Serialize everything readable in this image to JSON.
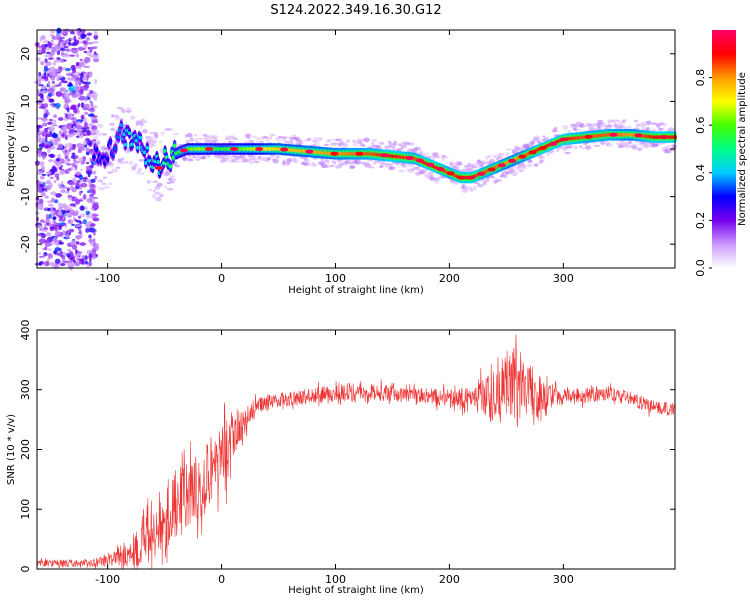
{
  "title": "S124.2022.349.16.30.G12",
  "chart_data": [
    {
      "type": "heatmap",
      "xlabel": "Height of straight line (km)",
      "ylabel": "Frequency (Hz)",
      "xlim": [
        -162,
        398
      ],
      "ylim": [
        -25,
        25
      ],
      "x_ticks": [
        -100,
        0,
        100,
        200,
        300
      ],
      "y_ticks": [
        -20,
        -10,
        0,
        10,
        20
      ],
      "colorbar": {
        "label": "Normalized spectral amplitude",
        "range": [
          0,
          1
        ],
        "ticks": [
          "0.0",
          "0.2",
          "0.4",
          "0.6",
          "0.8"
        ],
        "tick_values": [
          0.0,
          0.2,
          0.4,
          0.6,
          0.8
        ],
        "colors": [
          "#ffffff",
          "#cc99ff",
          "#7700ee",
          "#0000ff",
          "#00ccff",
          "#00ff88",
          "#44ff00",
          "#ffff00",
          "#ff9900",
          "#ff0000",
          "#ff0066"
        ]
      },
      "ridge": {
        "x": [
          -100,
          -90,
          -80,
          -70,
          -60,
          -55,
          -50,
          -40,
          -30,
          -20,
          0,
          50,
          100,
          130,
          150,
          170,
          180,
          190,
          200,
          210,
          220,
          230,
          240,
          250,
          260,
          270,
          280,
          290,
          300,
          320,
          340,
          360,
          380,
          398
        ],
        "freq": [
          -2,
          3,
          2,
          0,
          -3,
          -4,
          -2,
          -1,
          0,
          0,
          0,
          0,
          -1,
          -1,
          -1.5,
          -2,
          -3,
          -4,
          -5,
          -6,
          -6,
          -5,
          -4,
          -3,
          -2,
          -1,
          0,
          1,
          2,
          2.5,
          3,
          3,
          2.5,
          2.5
        ],
        "amplitude": [
          0.3,
          0.35,
          0.45,
          0.4,
          0.45,
          0.45,
          0.5,
          0.55,
          0.6,
          0.65,
          0.55,
          0.75,
          0.8,
          0.85,
          0.9,
          0.85,
          0.9,
          0.9,
          0.85,
          0.9,
          0.9,
          0.85,
          0.85,
          0.8,
          0.8,
          0.85,
          0.9,
          0.9,
          0.9,
          0.85,
          0.85,
          0.8,
          0.9,
          0.9
        ]
      }
    },
    {
      "type": "line",
      "xlabel": "Height of straight line (km)",
      "ylabel": "SNR (10 * v/v)",
      "xlim": [
        -162,
        398
      ],
      "ylim": [
        0,
        400
      ],
      "x_ticks": [
        -100,
        0,
        100,
        200,
        300
      ],
      "y_ticks": [
        0,
        100,
        200,
        300,
        400
      ],
      "series": [
        {
          "color": "#ee3333",
          "x": [
            -162,
            -140,
            -120,
            -100,
            -80,
            -70,
            -60,
            -50,
            -40,
            -30,
            -20,
            -10,
            0,
            10,
            20,
            30,
            40,
            60,
            80,
            100,
            120,
            140,
            160,
            180,
            200,
            220,
            240,
            250,
            260,
            270,
            280,
            300,
            320,
            340,
            360,
            380,
            398
          ],
          "mean": [
            10,
            10,
            9,
            15,
            30,
            45,
            70,
            90,
            110,
            120,
            140,
            170,
            185,
            215,
            245,
            270,
            280,
            285,
            290,
            295,
            300,
            295,
            290,
            290,
            285,
            285,
            290,
            300,
            305,
            300,
            290,
            290,
            290,
            295,
            285,
            270,
            265
          ],
          "spread": [
            6,
            6,
            6,
            10,
            25,
            45,
            60,
            60,
            60,
            60,
            55,
            60,
            60,
            50,
            35,
            15,
            12,
            12,
            14,
            14,
            14,
            14,
            14,
            14,
            16,
            20,
            50,
            60,
            70,
            60,
            40,
            15,
            14,
            12,
            12,
            12,
            12
          ]
        }
      ]
    }
  ]
}
